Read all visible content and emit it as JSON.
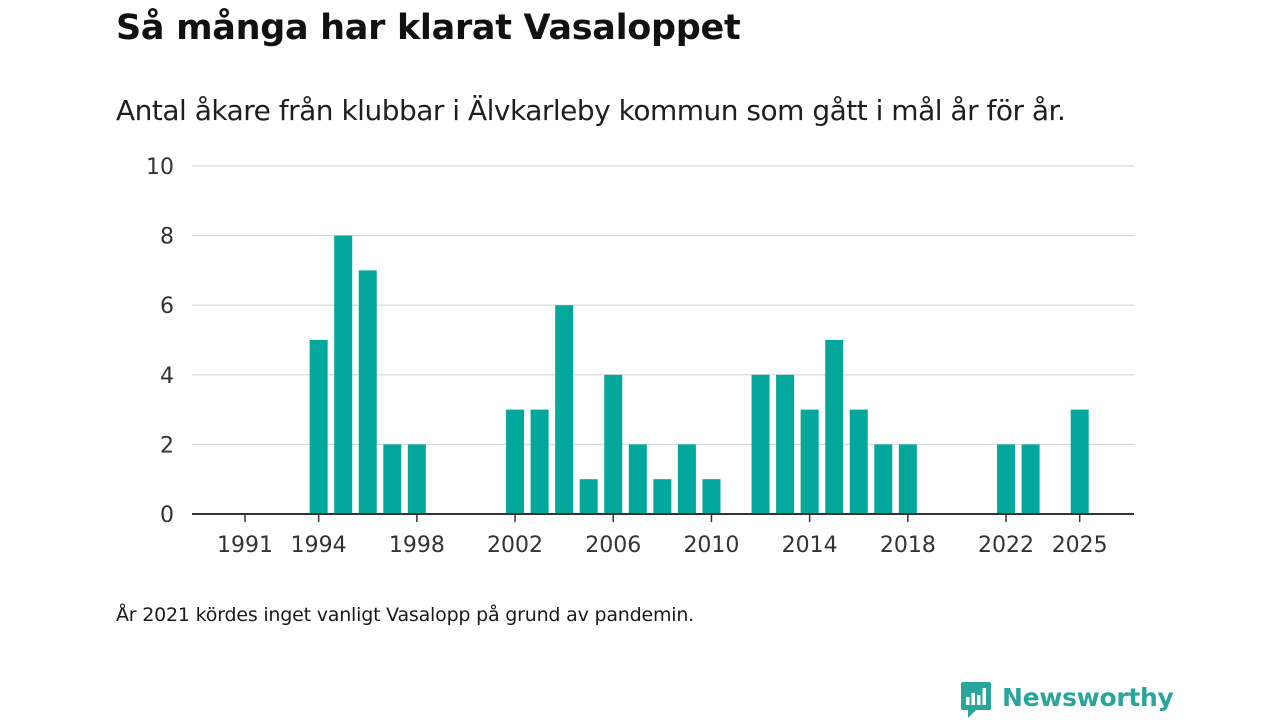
{
  "header": {
    "title": "Så många har klarat Vasaloppet",
    "subtitle": "Antal åkare från klubbar i Älvkarleby kommun som gått i mål år för år."
  },
  "chart_data": {
    "type": "bar",
    "title": "Så många har klarat Vasaloppet",
    "subtitle": "Antal åkare från klubbar i Älvkarleby kommun som gått i mål år för år.",
    "xlabel": "",
    "ylabel": "",
    "ylim": [
      0,
      10
    ],
    "yticks": [
      0,
      2,
      4,
      6,
      8,
      10
    ],
    "xticks": [
      1991,
      1994,
      1998,
      2002,
      2006,
      2010,
      2014,
      2018,
      2022,
      2025
    ],
    "bar_color": "#03a79b",
    "grid": true,
    "categories": [
      1991,
      1992,
      1993,
      1994,
      1995,
      1996,
      1997,
      1998,
      1999,
      2000,
      2001,
      2002,
      2003,
      2004,
      2005,
      2006,
      2007,
      2008,
      2009,
      2010,
      2011,
      2012,
      2013,
      2014,
      2015,
      2016,
      2017,
      2018,
      2019,
      2020,
      2021,
      2022,
      2023,
      2024,
      2025
    ],
    "values": [
      0,
      0,
      0,
      5,
      8,
      7,
      2,
      2,
      0,
      0,
      0,
      3,
      3,
      6,
      1,
      4,
      2,
      1,
      2,
      1,
      0,
      4,
      4,
      3,
      5,
      3,
      2,
      2,
      0,
      0,
      0,
      2,
      2,
      0,
      3
    ]
  },
  "footer": {
    "note": "År 2021 kördes inget vanligt Vasalopp på grund av pandemin.",
    "brand": "Newsworthy",
    "brand_icon": "newsworthy-logo-icon",
    "brand_color": "#2aa59c"
  }
}
